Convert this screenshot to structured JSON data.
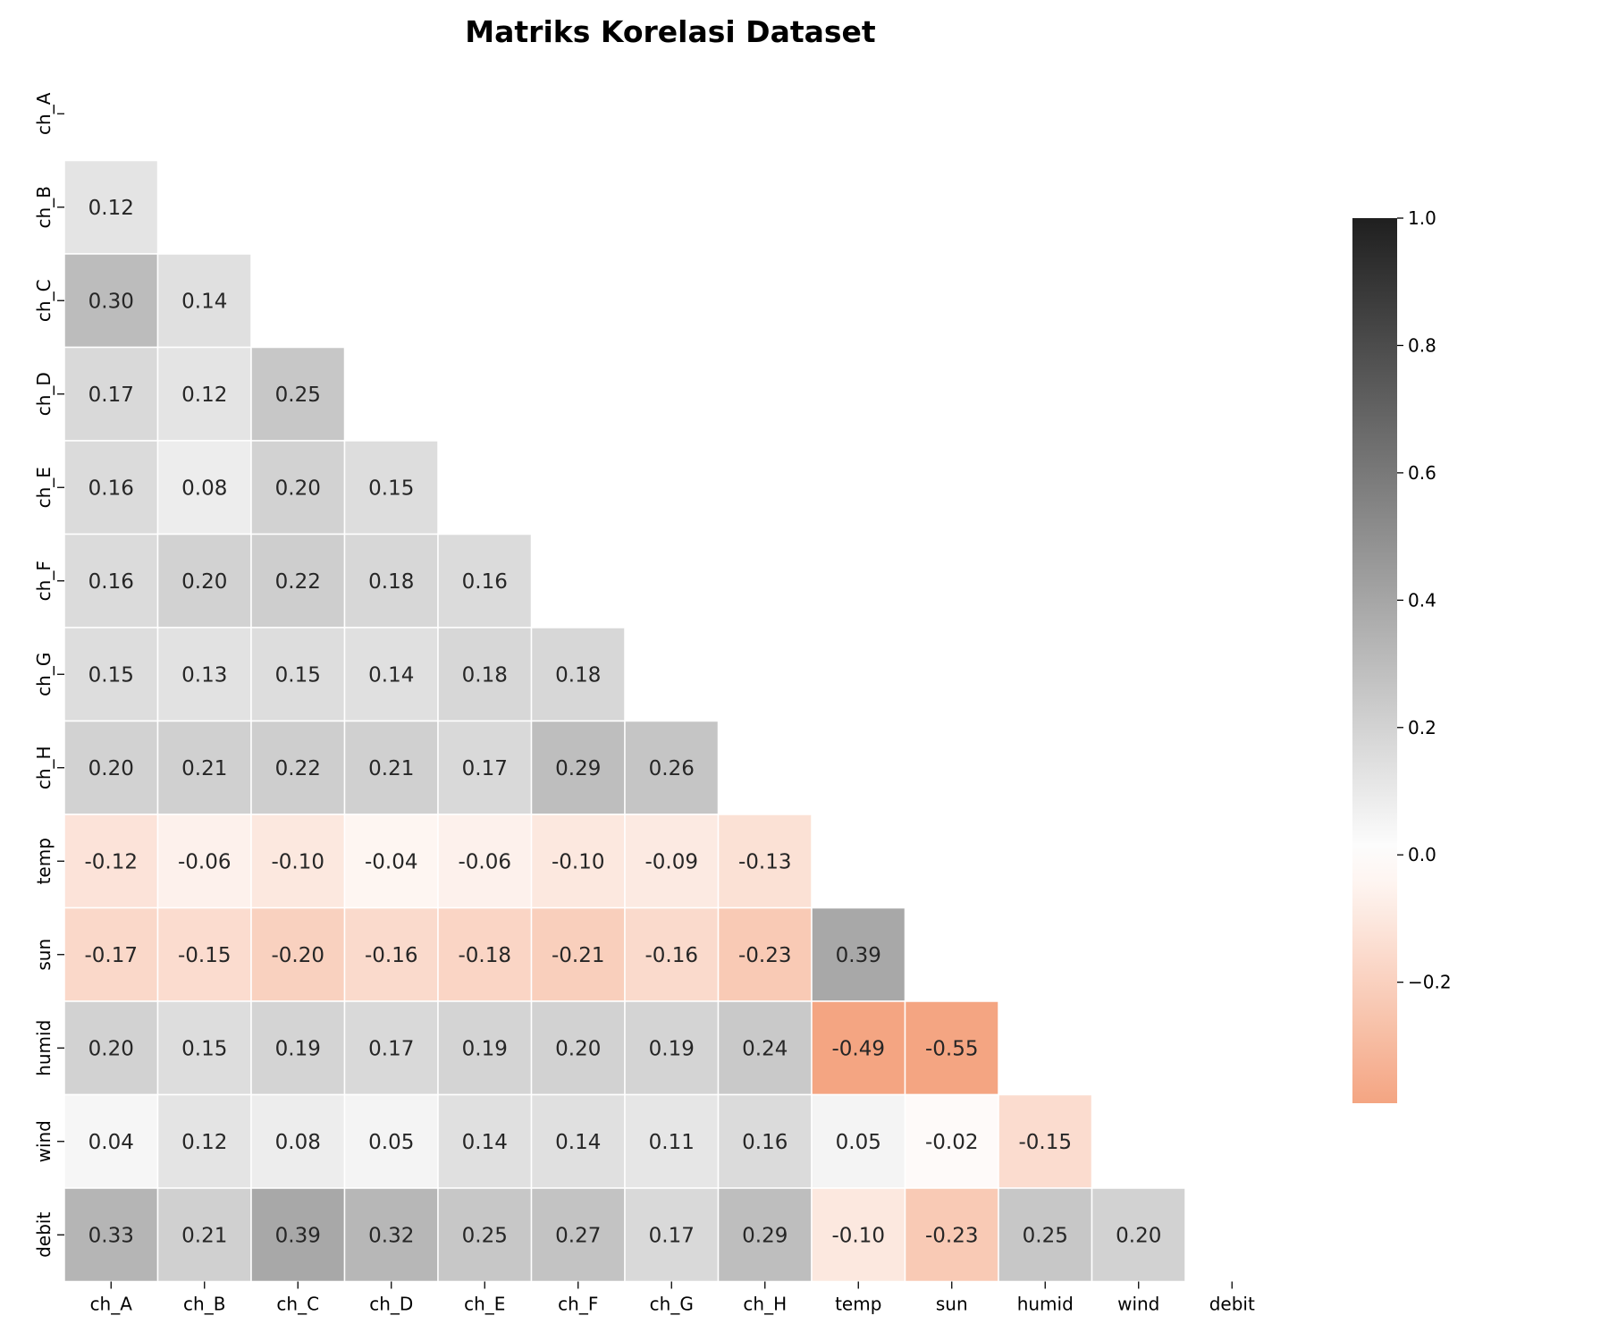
{
  "chart_data": {
    "type": "heatmap",
    "title": "Matriks Korelasi Dataset",
    "labels": [
      "ch_A",
      "ch_B",
      "ch_C",
      "ch_D",
      "ch_E",
      "ch_F",
      "ch_G",
      "ch_H",
      "temp",
      "sun",
      "humid",
      "wind",
      "debit"
    ],
    "mask": "upper-triangle-including-diagonal",
    "matrix": [
      [],
      [
        0.12
      ],
      [
        0.3,
        0.14
      ],
      [
        0.17,
        0.12,
        0.25
      ],
      [
        0.16,
        0.08,
        0.2,
        0.15
      ],
      [
        0.16,
        0.2,
        0.22,
        0.18,
        0.16
      ],
      [
        0.15,
        0.13,
        0.15,
        0.14,
        0.18,
        0.18
      ],
      [
        0.2,
        0.21,
        0.22,
        0.21,
        0.17,
        0.29,
        0.26
      ],
      [
        -0.12,
        -0.06,
        -0.1,
        -0.04,
        -0.06,
        -0.1,
        -0.09,
        -0.13
      ],
      [
        -0.17,
        -0.15,
        -0.2,
        -0.16,
        -0.18,
        -0.21,
        -0.16,
        -0.23,
        0.39
      ],
      [
        0.2,
        0.15,
        0.19,
        0.17,
        0.19,
        0.2,
        0.19,
        0.24,
        -0.49,
        -0.55
      ],
      [
        0.04,
        0.12,
        0.08,
        0.05,
        0.14,
        0.14,
        0.11,
        0.16,
        0.05,
        -0.02,
        -0.15
      ],
      [
        0.33,
        0.21,
        0.39,
        0.32,
        0.25,
        0.27,
        0.17,
        0.29,
        -0.1,
        -0.23,
        0.25,
        0.2
      ]
    ],
    "colorbar": {
      "range": [
        -0.39,
        1.0
      ],
      "ticks": [
        1.0,
        0.8,
        0.6,
        0.4,
        0.2,
        0.0,
        -0.2
      ],
      "tick_labels": [
        "1.0",
        "0.8",
        "0.6",
        "0.4",
        "0.2",
        "0.0",
        "−0.2"
      ]
    },
    "colors": {
      "positive_max": "#1f1f1f",
      "zero": "#ffffff",
      "negative_max": "#f4a582",
      "cell_border": "#ffffff"
    },
    "grid": false,
    "legend": "colorbar-right"
  }
}
